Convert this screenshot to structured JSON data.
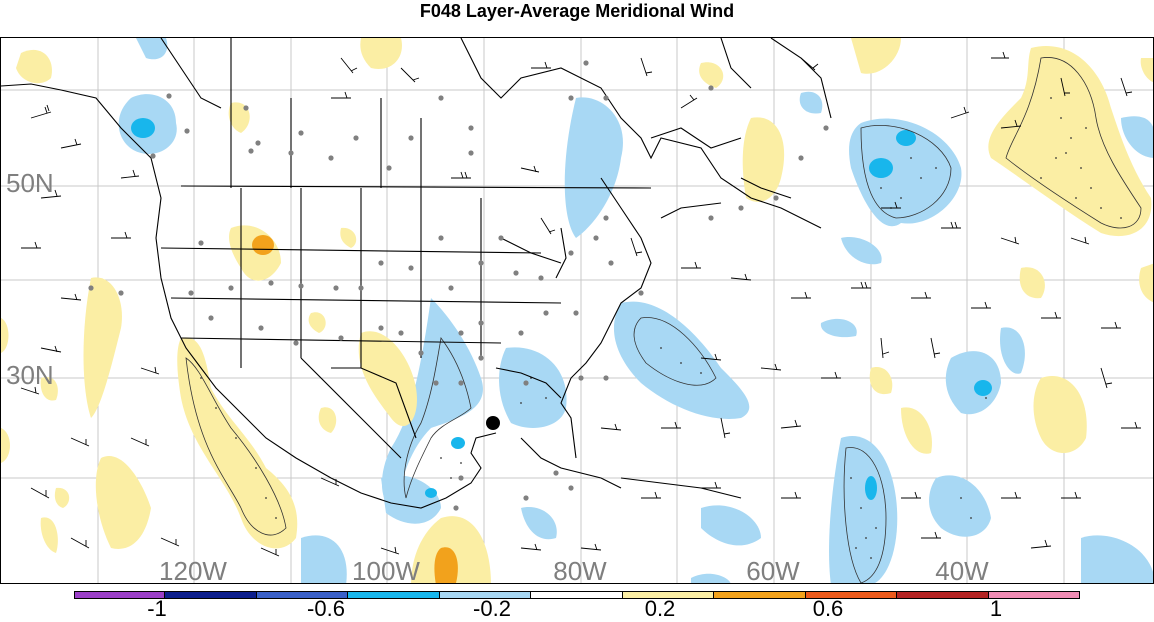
{
  "title": "F048 Layer-Average Meridional Wind",
  "map": {
    "lat_labels": [
      "50N",
      "30N"
    ],
    "lon_labels": [
      "120W",
      "100W",
      "80W",
      "60W",
      "40W"
    ],
    "fill_colors": {
      "light_blue": "#a8d8f4",
      "blue": "#18b6ec",
      "light_yellow": "#fbeea4",
      "orange": "#f2a21c",
      "land_outline": "#000000",
      "gridline": "#bfbfbf",
      "station_dot": "#808080"
    },
    "features": [
      "wind-barbs",
      "station-dots",
      "coastlines",
      "political-boundaries",
      "storm-center-marker"
    ]
  },
  "colorbar": {
    "tick_labels": [
      "-1",
      "-0.6",
      "-0.2",
      "0.2",
      "0.6",
      "1"
    ],
    "colors": [
      "#9b3fc8",
      "#0c1e8c",
      "#3a60c8",
      "#18b6ec",
      "#a8d8f4",
      "#ffffff",
      "#fbeea4",
      "#f2a21c",
      "#ec5a1c",
      "#b42424",
      "#f08cb4"
    ]
  }
}
